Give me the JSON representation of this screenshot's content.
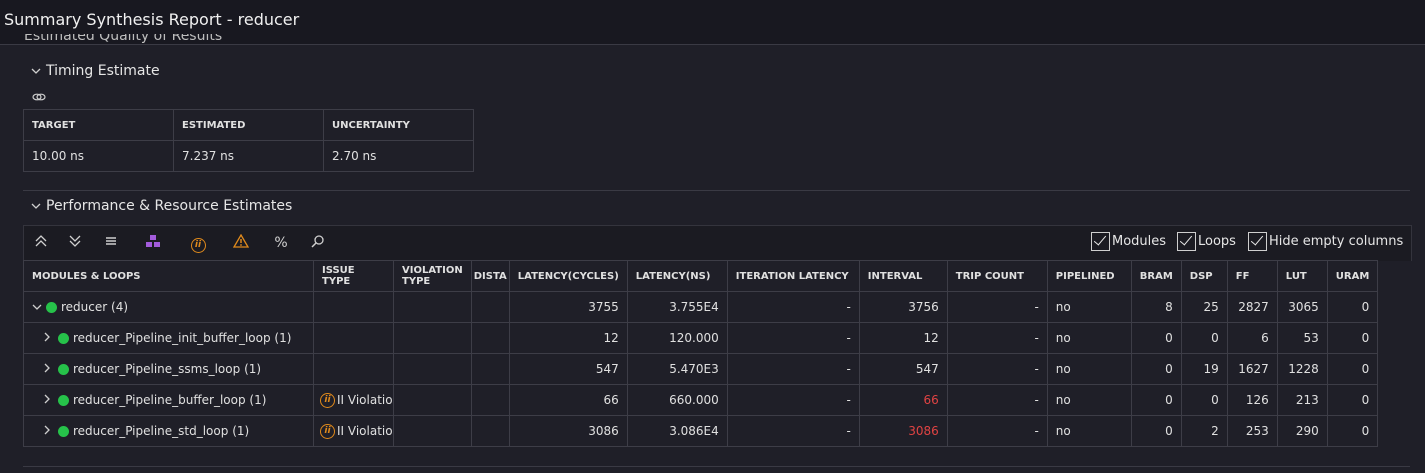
{
  "window": {
    "title": "Summary Synthesis Report - reducer"
  },
  "section_clipped": "Estimated Quality of Results",
  "timing": {
    "heading": "Timing Estimate",
    "columns": [
      "TARGET",
      "ESTIMATED",
      "UNCERTAINTY"
    ],
    "row": [
      "10.00 ns",
      "7.237 ns",
      "2.70 ns"
    ]
  },
  "perf": {
    "heading": "Performance & Resource Estimates",
    "toolbar": {
      "modules_label": "Modules",
      "loops_label": "Loops",
      "hide_empty_label": "Hide empty columns"
    },
    "columns": [
      "MODULES & LOOPS",
      "ISSUE TYPE",
      "VIOLATION TYPE",
      "DISTA",
      "LATENCY(CYCLES)",
      "LATENCY(NS)",
      "ITERATION LATENCY",
      "INTERVAL",
      "TRIP COUNT",
      "PIPELINED",
      "BRAM",
      "DSP",
      "FF",
      "LUT",
      "URAM"
    ],
    "rows": [
      {
        "name": "reducer",
        "count": "(4)",
        "issue": "",
        "latency_cycles": "3755",
        "latency_ns": "3.755E4",
        "iteration_latency": "-",
        "interval": "3756",
        "trip_count": "-",
        "pipelined": "no",
        "bram": "8",
        "dsp": "25",
        "ff": "2827",
        "lut": "3065",
        "uram": "0"
      },
      {
        "name": "reducer_Pipeline_init_buffer_loop",
        "count": "(1)",
        "issue": "",
        "latency_cycles": "12",
        "latency_ns": "120.000",
        "iteration_latency": "-",
        "interval": "12",
        "trip_count": "-",
        "pipelined": "no",
        "bram": "0",
        "dsp": "0",
        "ff": "6",
        "lut": "53",
        "uram": "0"
      },
      {
        "name": "reducer_Pipeline_ssms_loop",
        "count": "(1)",
        "issue": "",
        "latency_cycles": "547",
        "latency_ns": "5.470E3",
        "iteration_latency": "-",
        "interval": "547",
        "trip_count": "-",
        "pipelined": "no",
        "bram": "0",
        "dsp": "19",
        "ff": "1627",
        "lut": "1228",
        "uram": "0"
      },
      {
        "name": "reducer_Pipeline_buffer_loop",
        "count": "(1)",
        "issue": "II Violatio",
        "latency_cycles": "66",
        "latency_ns": "660.000",
        "iteration_latency": "-",
        "interval": "66",
        "trip_count": "-",
        "pipelined": "no",
        "bram": "0",
        "dsp": "0",
        "ff": "126",
        "lut": "213",
        "uram": "0"
      },
      {
        "name": "reducer_Pipeline_std_loop",
        "count": "(1)",
        "issue": "II Violatio",
        "latency_cycles": "3086",
        "latency_ns": "3.086E4",
        "iteration_latency": "-",
        "interval": "3086",
        "trip_count": "-",
        "pipelined": "no",
        "bram": "0",
        "dsp": "2",
        "ff": "253",
        "lut": "290",
        "uram": "0"
      }
    ]
  },
  "colors": {
    "status_ok": "#26c24a",
    "violation": "#e04343",
    "issue_icon": "#e08a1c",
    "background": "#1f1f28"
  }
}
